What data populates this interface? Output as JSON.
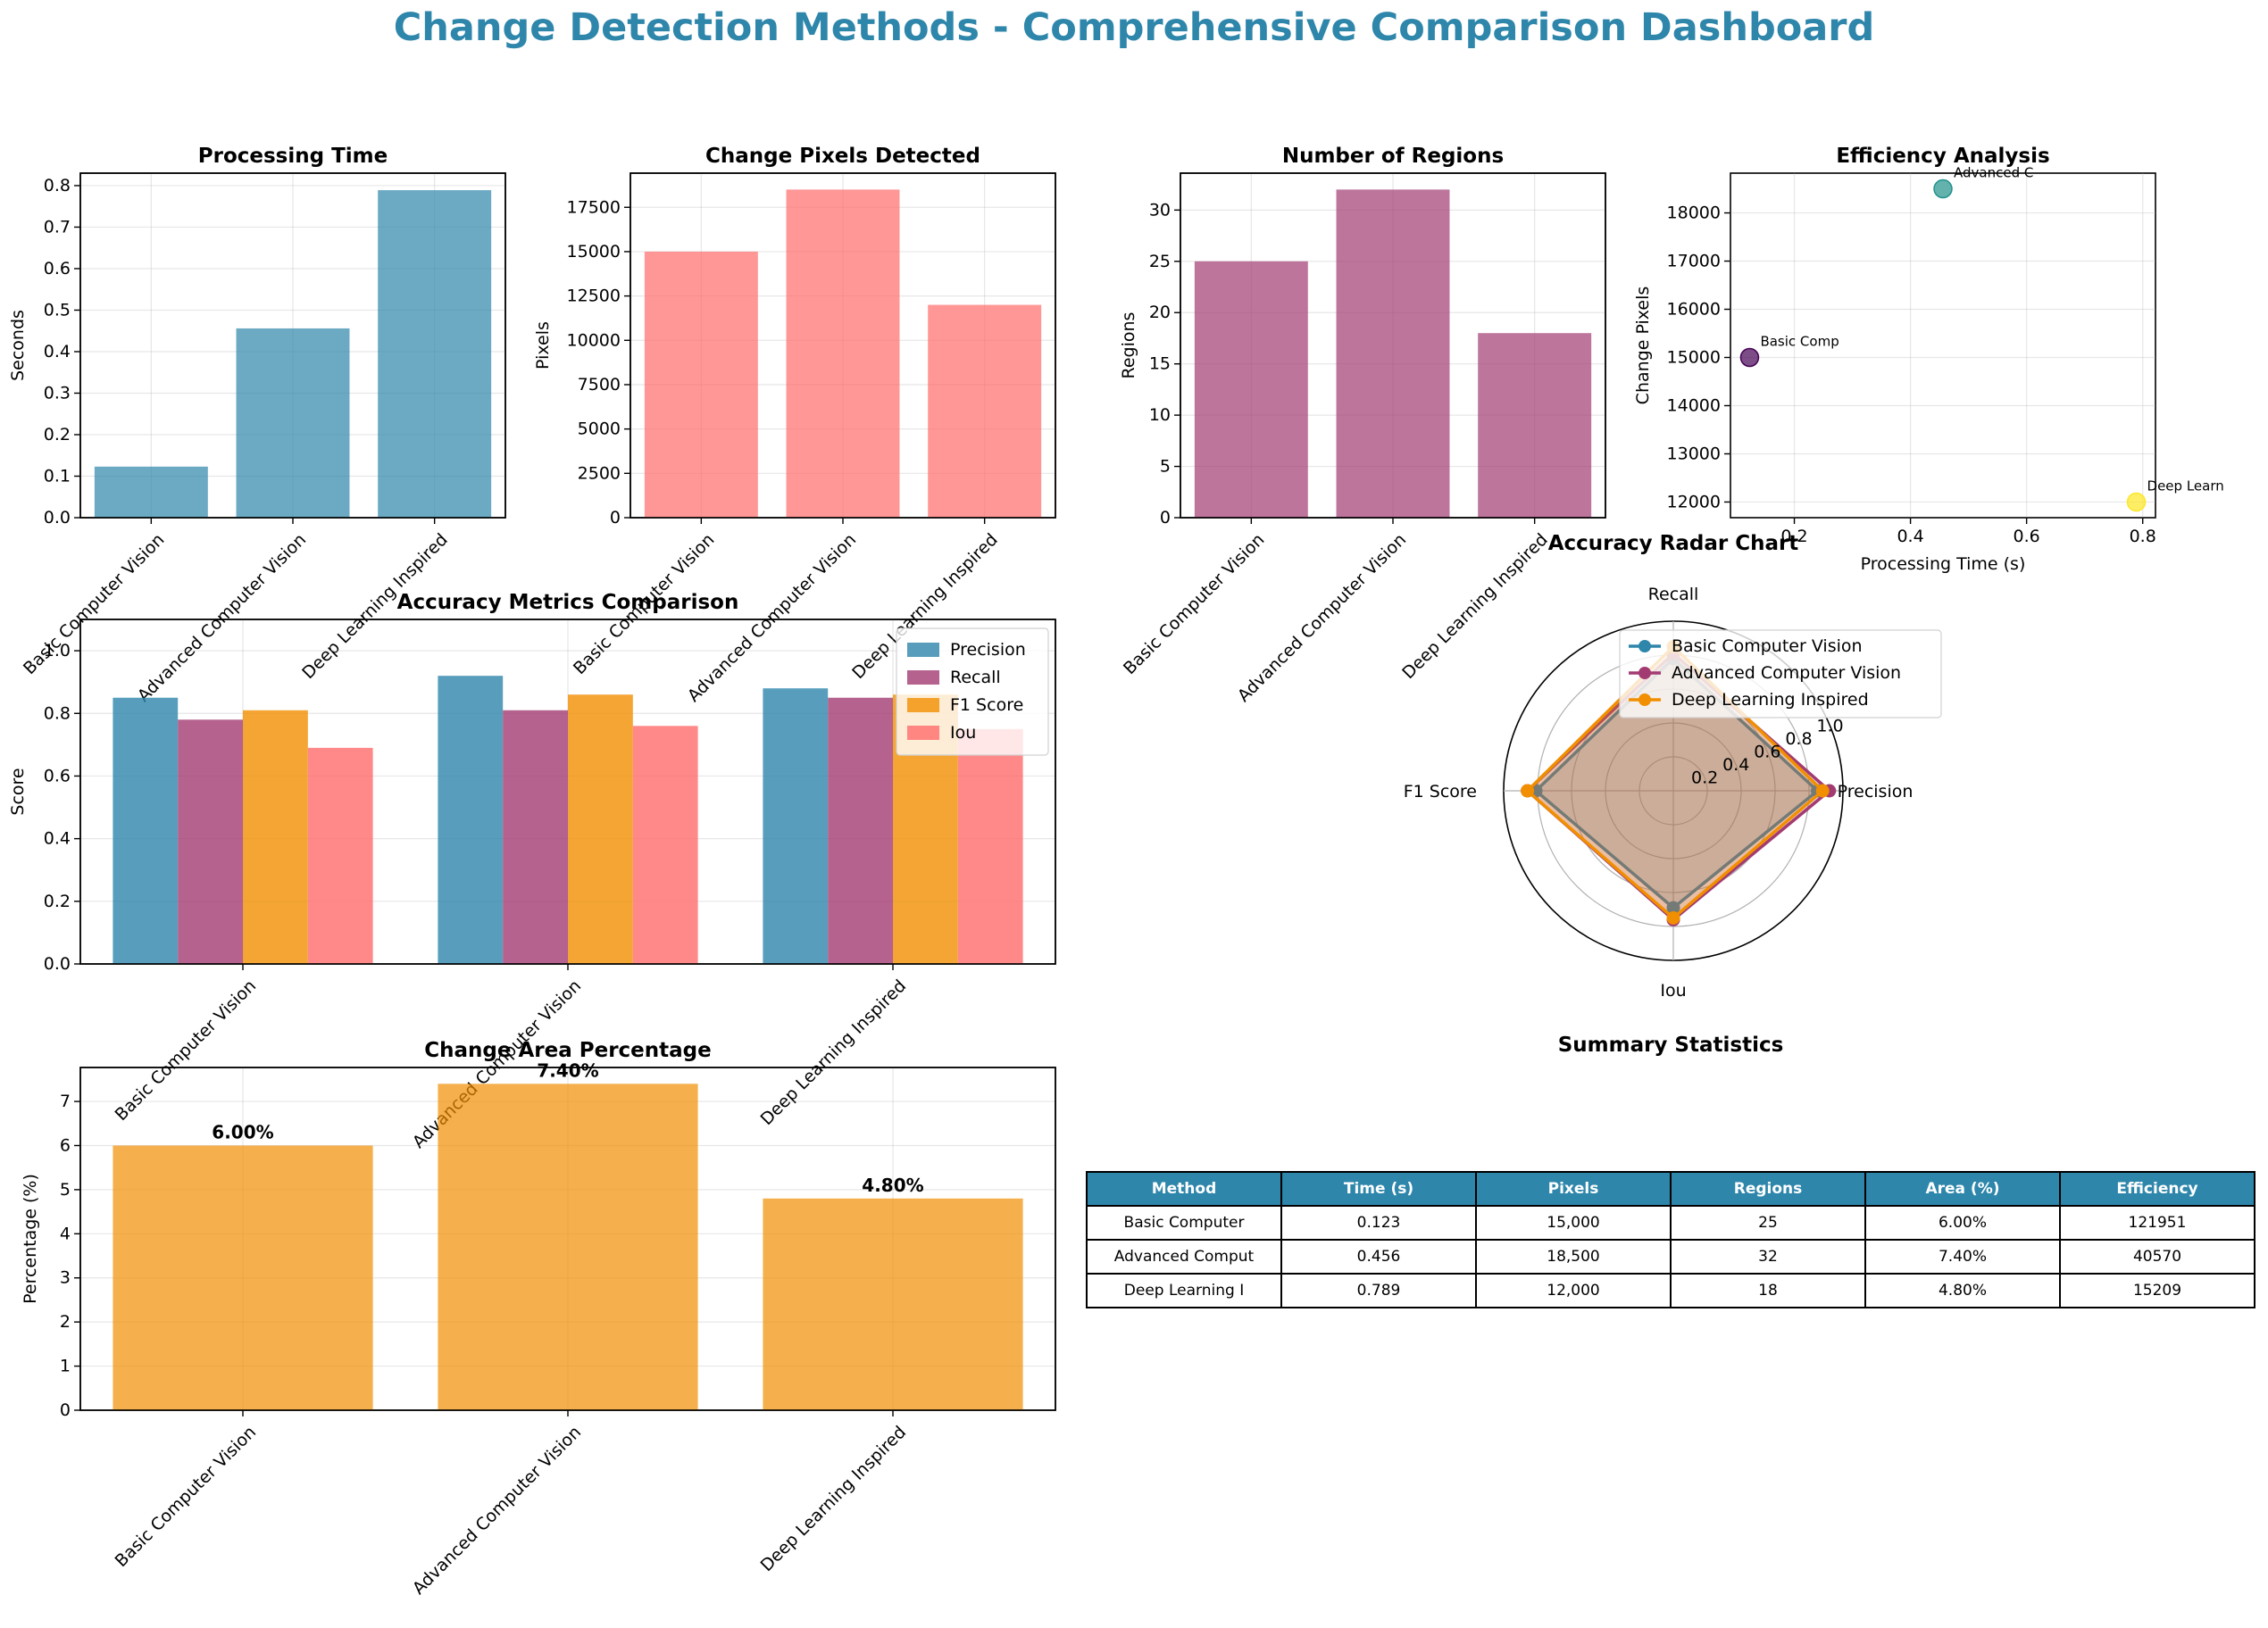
{
  "suptitle": "Change Detection Methods - Comprehensive Comparison Dashboard",
  "colors": {
    "title": "#2E86AB",
    "time": "#2E86AB",
    "pixels": "#FF6B6B",
    "regions": "#A23B72",
    "area": "#F18F01",
    "precision": "#2E86AB",
    "recall": "#A23B72",
    "f1": "#F18F01",
    "iou": "#FF6B6B",
    "scatter": [
      "#440154",
      "#21918C",
      "#FDE725"
    ],
    "header_bg": "#2E86AB"
  },
  "methods": [
    "Basic Computer Vision",
    "Advanced Computer Vision",
    "Deep Learning Inspired"
  ],
  "chart_data": [
    {
      "type": "bar",
      "title": "Processing Time",
      "xlabel": "",
      "ylabel": "Seconds",
      "categories": [
        "Basic Computer Vision",
        "Advanced Computer Vision",
        "Deep Learning Inspired"
      ],
      "values": [
        0.123,
        0.456,
        0.789
      ],
      "ylim": [
        0,
        0.83
      ],
      "yticks": [
        0.0,
        0.1,
        0.2,
        0.3,
        0.4,
        0.5,
        0.6,
        0.7,
        0.8
      ],
      "grid": true
    },
    {
      "type": "bar",
      "title": "Change Pixels Detected",
      "xlabel": "",
      "ylabel": "Pixels",
      "categories": [
        "Basic Computer Vision",
        "Advanced Computer Vision",
        "Deep Learning Inspired"
      ],
      "values": [
        15000,
        18500,
        12000
      ],
      "ylim": [
        0,
        19425
      ],
      "yticks": [
        0,
        2500,
        5000,
        7500,
        10000,
        12500,
        15000,
        17500
      ],
      "grid": true
    },
    {
      "type": "bar",
      "title": "Number of Regions",
      "xlabel": "",
      "ylabel": "Regions",
      "categories": [
        "Basic Computer Vision",
        "Advanced Computer Vision",
        "Deep Learning Inspired"
      ],
      "values": [
        25,
        32,
        18
      ],
      "ylim": [
        0,
        33.6
      ],
      "yticks": [
        0,
        5,
        10,
        15,
        20,
        25,
        30
      ],
      "grid": true
    },
    {
      "type": "scatter",
      "title": "Efficiency Analysis",
      "xlabel": "Processing Time (s)",
      "ylabel": "Change Pixels",
      "x": [
        0.123,
        0.456,
        0.789
      ],
      "y": [
        15000,
        18500,
        12000
      ],
      "point_labels": [
        "Basic Comp",
        "Advanced C",
        "Deep Learn"
      ],
      "xlim": [
        0.09,
        0.822
      ],
      "ylim": [
        11675,
        18825
      ],
      "xticks": [
        0.2,
        0.4,
        0.6,
        0.8
      ],
      "yticks": [
        12000,
        13000,
        14000,
        15000,
        16000,
        17000,
        18000
      ],
      "grid": true
    },
    {
      "type": "bar",
      "title": "Accuracy Metrics Comparison",
      "xlabel": "",
      "ylabel": "Score",
      "categories": [
        "Basic Computer Vision",
        "Advanced Computer Vision",
        "Deep Learning Inspired"
      ],
      "series": [
        {
          "name": "Precision",
          "values": [
            0.85,
            0.92,
            0.88
          ]
        },
        {
          "name": "Recall",
          "values": [
            0.78,
            0.81,
            0.85
          ]
        },
        {
          "name": "F1 Score",
          "values": [
            0.81,
            0.86,
            0.86
          ]
        },
        {
          "name": "Iou",
          "values": [
            0.69,
            0.76,
            0.75
          ]
        }
      ],
      "ylim": [
        0,
        1.1
      ],
      "yticks": [
        0.0,
        0.2,
        0.4,
        0.6,
        0.8,
        1.0
      ],
      "legend": "top-right",
      "grid": true
    },
    {
      "type": "line",
      "title": "Accuracy Radar Chart",
      "axes": [
        "Precision",
        "Recall",
        "F1 Score",
        "Iou"
      ],
      "series": [
        {
          "name": "Basic Computer Vision",
          "values": [
            0.85,
            0.78,
            0.81,
            0.69
          ]
        },
        {
          "name": "Advanced Computer Vision",
          "values": [
            0.92,
            0.81,
            0.86,
            0.76
          ]
        },
        {
          "name": "Deep Learning Inspired",
          "values": [
            0.88,
            0.85,
            0.86,
            0.75
          ]
        }
      ],
      "rticks": [
        "0.2",
        "0.4",
        "0.6",
        "0.8",
        "1.0"
      ],
      "rlim": [
        0,
        1
      ],
      "legend": "top-right"
    },
    {
      "type": "bar",
      "title": "Change Area Percentage",
      "xlabel": "",
      "ylabel": "Percentage (%)",
      "categories": [
        "Basic Computer Vision",
        "Advanced Computer Vision",
        "Deep Learning Inspired"
      ],
      "values": [
        6.0,
        7.4,
        4.8
      ],
      "data_labels": [
        "6.00%",
        "7.40%",
        "4.80%"
      ],
      "ylim": [
        0,
        7.77
      ],
      "yticks": [
        0,
        1,
        2,
        3,
        4,
        5,
        6,
        7
      ],
      "grid": true
    },
    {
      "type": "table",
      "title": "Summary Statistics",
      "headers": [
        "Method",
        "Time (s)",
        "Pixels",
        "Regions",
        "Area (%)",
        "Efficiency"
      ],
      "rows": [
        [
          "Basic Computer",
          "0.123",
          "15,000",
          "25",
          "6.00%",
          "121951"
        ],
        [
          "Advanced Comput",
          "0.456",
          "18,500",
          "32",
          "7.40%",
          "40570"
        ],
        [
          "Deep Learning I",
          "0.789",
          "12,000",
          "18",
          "4.80%",
          "15209"
        ]
      ]
    }
  ]
}
